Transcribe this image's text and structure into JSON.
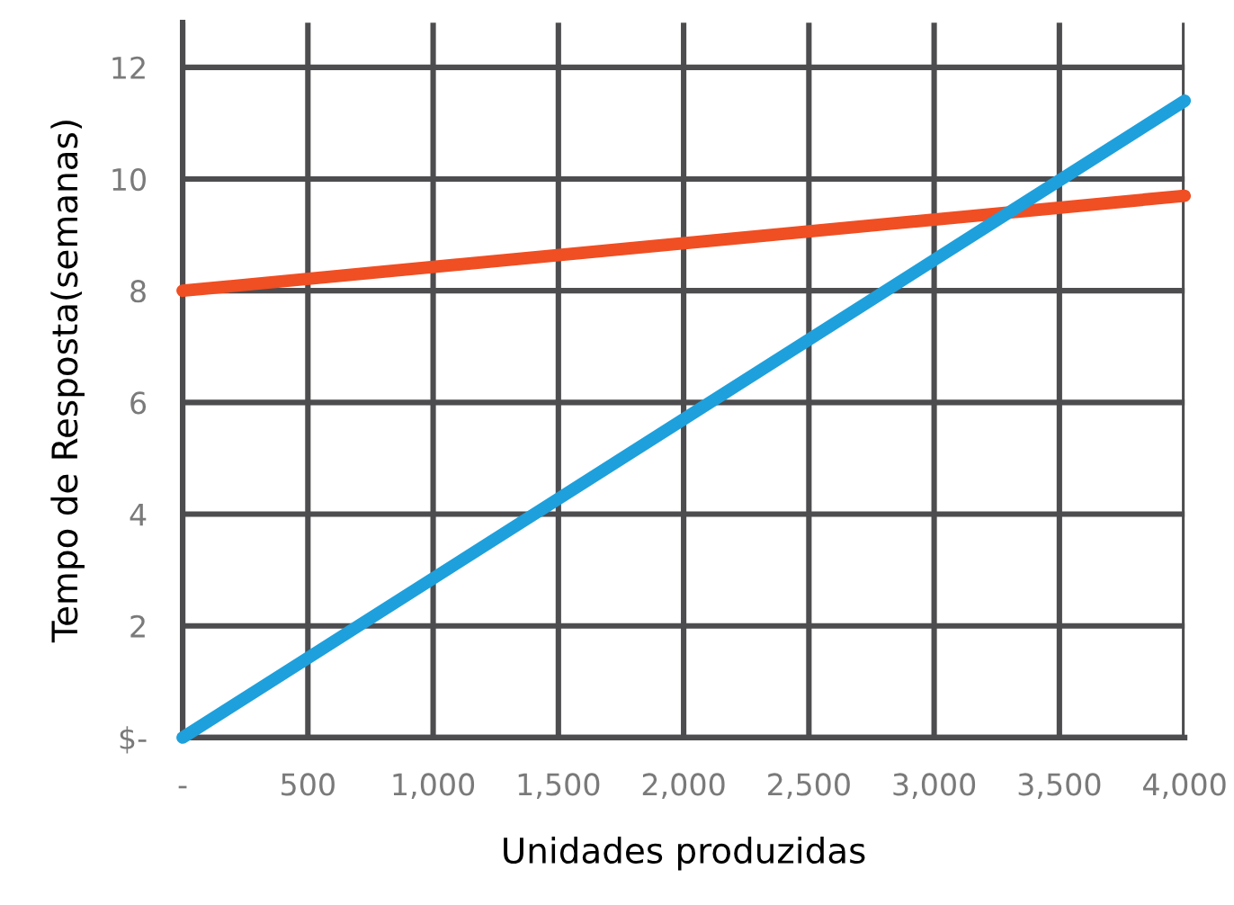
{
  "chart_data": {
    "type": "line",
    "xlabel": "Unidades produzidas",
    "ylabel": "Tempo de Resposta(semanas)",
    "x": [
      0,
      4000
    ],
    "series": [
      {
        "color": "#f04e23",
        "values": [
          8,
          9.7
        ]
      },
      {
        "color": "#1ea0dc",
        "values": [
          0,
          11.4
        ]
      }
    ],
    "xlim": [
      0,
      4000
    ],
    "ylim": [
      0,
      12.8
    ],
    "xticks": [
      {
        "value": 0,
        "label": "-"
      },
      {
        "value": 500,
        "label": "500"
      },
      {
        "value": 1000,
        "label": "1,000"
      },
      {
        "value": 1500,
        "label": "1,500"
      },
      {
        "value": 2000,
        "label": "2,000"
      },
      {
        "value": 2500,
        "label": "2,500"
      },
      {
        "value": 3000,
        "label": "3,000"
      },
      {
        "value": 3500,
        "label": "3,500"
      },
      {
        "value": 4000,
        "label": "4,000"
      }
    ],
    "yticks": [
      {
        "value": 0,
        "label": "$-"
      },
      2,
      4,
      6,
      8,
      10,
      12
    ],
    "grid": true,
    "legend": false,
    "marker": "none",
    "line_style": "solid"
  }
}
